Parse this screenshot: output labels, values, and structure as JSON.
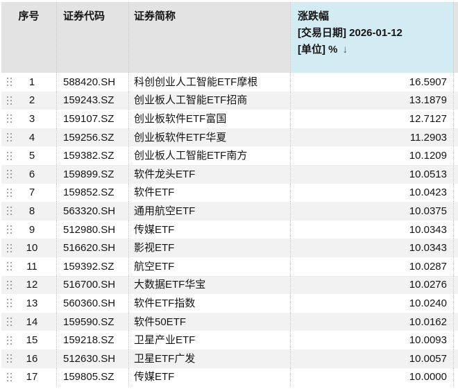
{
  "table": {
    "header": {
      "col_index": "序号",
      "col_code": "证券代码",
      "col_name": "证券简称",
      "col_change": {
        "title": "涨跌幅",
        "sub_date": "[交易日期] 2026-01-12",
        "sub_unit": "[单位] %",
        "sort_icon": "↓",
        "sort_state": "descending"
      }
    },
    "rows": [
      {
        "index": "1",
        "code": "588420.SH",
        "name": "科创创业人工智能ETF摩根",
        "change": "16.5907"
      },
      {
        "index": "2",
        "code": "159243.SZ",
        "name": "创业板人工智能ETF招商",
        "change": "13.1879"
      },
      {
        "index": "3",
        "code": "159107.SZ",
        "name": "创业板软件ETF富国",
        "change": "12.7127"
      },
      {
        "index": "4",
        "code": "159256.SZ",
        "name": "创业板软件ETF华夏",
        "change": "11.2903"
      },
      {
        "index": "5",
        "code": "159382.SZ",
        "name": "创业板人工智能ETF南方",
        "change": "10.1209"
      },
      {
        "index": "6",
        "code": "159899.SZ",
        "name": "软件龙头ETF",
        "change": "10.0513"
      },
      {
        "index": "7",
        "code": "159852.SZ",
        "name": "软件ETF",
        "change": "10.0423"
      },
      {
        "index": "8",
        "code": "563320.SH",
        "name": "通用航空ETF",
        "change": "10.0375"
      },
      {
        "index": "9",
        "code": "512980.SH",
        "name": "传媒ETF",
        "change": "10.0343"
      },
      {
        "index": "10",
        "code": "516620.SH",
        "name": "影视ETF",
        "change": "10.0343"
      },
      {
        "index": "11",
        "code": "159392.SZ",
        "name": "航空ETF",
        "change": "10.0287"
      },
      {
        "index": "12",
        "code": "516700.SH",
        "name": "大数据ETF华宝",
        "change": "10.0276"
      },
      {
        "index": "13",
        "code": "560360.SH",
        "name": "软件ETF指数",
        "change": "10.0240"
      },
      {
        "index": "14",
        "code": "159590.SZ",
        "name": "软件50ETF",
        "change": "10.0162"
      },
      {
        "index": "15",
        "code": "159218.SZ",
        "name": "卫星产业ETF",
        "change": "10.0093"
      },
      {
        "index": "16",
        "code": "512630.SH",
        "name": "卫星ETF广发",
        "change": "10.0057"
      },
      {
        "index": "17",
        "code": "159805.SZ",
        "name": "传媒ETF",
        "change": "10.0000"
      }
    ]
  },
  "colors": {
    "header-gray": "#e3e3e3",
    "header-blue": "#d3ecf4",
    "row-alt": "#f2f2f3",
    "grid-dot": "#c9c9c9",
    "handle": "#85858a",
    "arrow": "#55555e"
  }
}
